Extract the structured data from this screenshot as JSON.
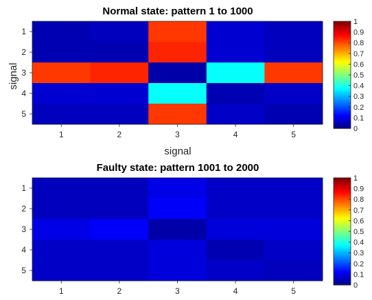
{
  "chart_data": [
    {
      "type": "heatmap",
      "title": "Normal state: pattern 1 to 1000",
      "xlabel": "signal",
      "ylabel": "signal",
      "x_categories": [
        "1",
        "2",
        "3",
        "4",
        "5"
      ],
      "y_categories": [
        "1",
        "2",
        "3",
        "4",
        "5"
      ],
      "values": [
        [
          0.05,
          0.06,
          0.82,
          0.08,
          0.06
        ],
        [
          0.05,
          0.05,
          0.84,
          0.08,
          0.06
        ],
        [
          0.82,
          0.84,
          0.04,
          0.38,
          0.82
        ],
        [
          0.08,
          0.08,
          0.38,
          0.05,
          0.07
        ],
        [
          0.06,
          0.06,
          0.82,
          0.07,
          0.05
        ]
      ],
      "colorbar": {
        "min": 0,
        "max": 1,
        "ticks": [
          "0",
          "0.1",
          "0.2",
          "0.3",
          "0.4",
          "0.5",
          "0.6",
          "0.7",
          "0.8",
          "0.9",
          "1"
        ]
      },
      "colormap": "jet"
    },
    {
      "type": "heatmap",
      "title": "Faulty state: pattern 1001 to 2000",
      "xlabel": "",
      "ylabel": "",
      "x_categories": [
        "1",
        "2",
        "3",
        "4",
        "5"
      ],
      "y_categories": [
        "1",
        "2",
        "3",
        "4",
        "5"
      ],
      "values": [
        [
          0.06,
          0.06,
          0.1,
          0.07,
          0.07
        ],
        [
          0.06,
          0.06,
          0.12,
          0.07,
          0.07
        ],
        [
          0.1,
          0.12,
          0.04,
          0.09,
          0.09
        ],
        [
          0.07,
          0.07,
          0.09,
          0.05,
          0.07
        ],
        [
          0.07,
          0.07,
          0.09,
          0.07,
          0.06
        ]
      ],
      "colorbar": {
        "min": 0,
        "max": 1,
        "ticks": [
          "0",
          "0.1",
          "0.2",
          "0.3",
          "0.4",
          "0.5",
          "0.6",
          "0.7",
          "0.8",
          "0.9",
          "1"
        ]
      },
      "colormap": "jet"
    }
  ]
}
